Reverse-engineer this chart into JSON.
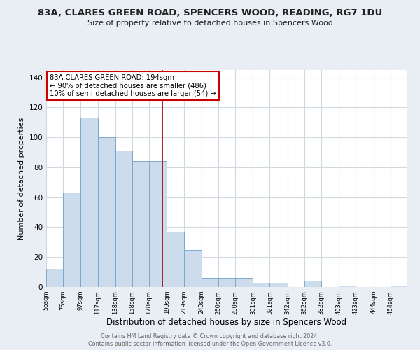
{
  "title": "83A, CLARES GREEN ROAD, SPENCERS WOOD, READING, RG7 1DU",
  "subtitle": "Size of property relative to detached houses in Spencers Wood",
  "xlabel": "Distribution of detached houses by size in Spencers Wood",
  "ylabel": "Number of detached properties",
  "bar_heights": [
    12,
    63,
    113,
    100,
    91,
    84,
    84,
    37,
    25,
    6,
    6,
    6,
    3,
    3,
    0,
    4,
    0,
    1,
    0,
    0,
    1
  ],
  "bin_edges": [
    56,
    76,
    97,
    117,
    138,
    158,
    178,
    199,
    219,
    240,
    260,
    280,
    301,
    321,
    342,
    362,
    382,
    403,
    423,
    444,
    464,
    484
  ],
  "tick_labels": [
    "56sqm",
    "76sqm",
    "97sqm",
    "117sqm",
    "138sqm",
    "158sqm",
    "178sqm",
    "199sqm",
    "219sqm",
    "240sqm",
    "260sqm",
    "280sqm",
    "301sqm",
    "321sqm",
    "342sqm",
    "362sqm",
    "382sqm",
    "403sqm",
    "423sqm",
    "444sqm",
    "464sqm"
  ],
  "vline_x": 194,
  "bar_color": "#cddcec",
  "bar_edge_color": "#7aa8cc",
  "vline_color": "#990000",
  "annotation_line1": "83A CLARES GREEN ROAD: 194sqm",
  "annotation_line2": "← 90% of detached houses are smaller (486)",
  "annotation_line3": "10% of semi-detached houses are larger (54) →",
  "annotation_box_color": "#cc0000",
  "ylim": [
    0,
    145
  ],
  "yticks": [
    0,
    20,
    40,
    60,
    80,
    100,
    120,
    140
  ],
  "plot_bg_color": "#ffffff",
  "fig_bg_color": "#e8eef4",
  "grid_color": "#d0d8e0",
  "footer_line1": "Contains HM Land Registry data © Crown copyright and database right 2024.",
  "footer_line2": "Contains public sector information licensed under the Open Government Licence v3.0."
}
